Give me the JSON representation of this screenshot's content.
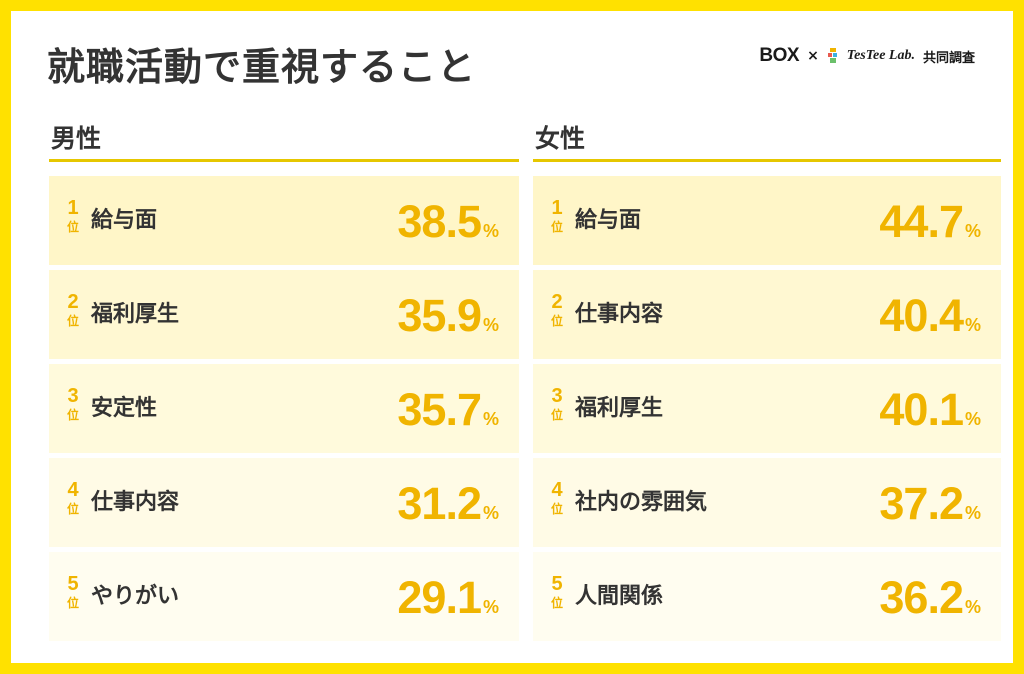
{
  "title": "就職活動で重視すること",
  "brand": {
    "box": "BOX",
    "times": "×",
    "testee": "TesTee Lab.",
    "collab": "共同調査"
  },
  "rank_suffix": "位",
  "percent_sign": "%",
  "colors": {
    "frame": "#FFE100",
    "accent": "#F0B400",
    "rule": "#E6C700",
    "text": "#333333",
    "row_top": "#FFF6C8",
    "row_bottom": "#FFFDF0"
  },
  "chart_data": [
    {
      "type": "table",
      "title": "男性",
      "unit": "%",
      "categories": [
        "給与面",
        "福利厚生",
        "安定性",
        "仕事内容",
        "やりがい"
      ],
      "values": [
        38.5,
        35.9,
        35.7,
        31.2,
        29.1
      ]
    },
    {
      "type": "table",
      "title": "女性",
      "unit": "%",
      "categories": [
        "給与面",
        "仕事内容",
        "福利厚生",
        "社内の雰囲気",
        "人間関係"
      ],
      "values": [
        44.7,
        40.4,
        40.1,
        37.2,
        36.2
      ]
    }
  ]
}
